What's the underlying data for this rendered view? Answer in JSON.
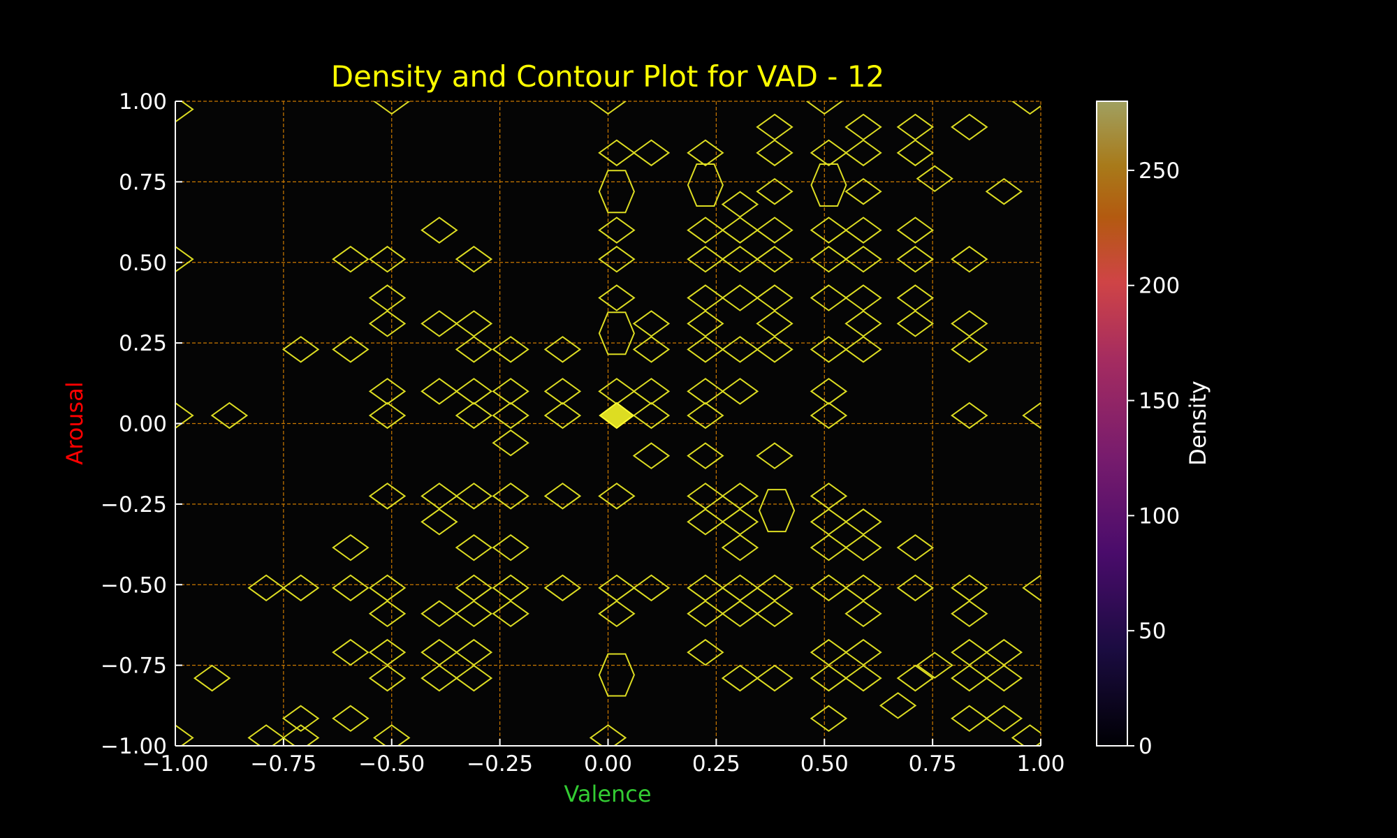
{
  "chart_data": {
    "type": "heatmap",
    "title": "Density and Contour Plot for VAD - 12",
    "xlabel": "Valence",
    "ylabel": "Arousal",
    "xlim": [
      -1.0,
      1.0
    ],
    "ylim": [
      -1.0,
      1.0
    ],
    "x_ticks": [
      "−1.00",
      "−0.75",
      "−0.50",
      "−0.25",
      "0.00",
      "0.25",
      "0.50",
      "0.75",
      "1.00"
    ],
    "y_ticks": [
      "−1.00",
      "−0.75",
      "−0.50",
      "−0.25",
      "0.00",
      "0.25",
      "0.50",
      "0.75",
      "1.00"
    ],
    "grid": true,
    "colorbar": {
      "label": "Density",
      "min": 0,
      "max": 280,
      "ticks": [
        "0",
        "50",
        "100",
        "150",
        "200",
        "250"
      ],
      "colormap": "inferno"
    },
    "colors": {
      "background": "#000000",
      "title": "#ffff00",
      "xlabel": "#33cc33",
      "ylabel": "#ff0000",
      "grid": "#cc7a00",
      "contour": "#dddd22",
      "tick_label": "#ffffff"
    },
    "contours": [
      [
        -1.0,
        0.975
      ],
      [
        -0.5,
        1.0
      ],
      [
        0.0,
        1.0
      ],
      [
        0.5,
        1.0
      ],
      [
        0.975,
        1.0
      ],
      [
        0.385,
        0.92
      ],
      [
        0.59,
        0.92
      ],
      [
        0.71,
        0.92
      ],
      [
        0.835,
        0.92
      ],
      [
        0.02,
        0.84
      ],
      [
        0.1,
        0.84
      ],
      [
        0.225,
        0.84
      ],
      [
        0.385,
        0.84
      ],
      [
        0.51,
        0.84
      ],
      [
        0.59,
        0.84
      ],
      [
        0.71,
        0.84
      ],
      [
        0.755,
        0.76
      ],
      [
        0.305,
        0.68
      ],
      [
        0.385,
        0.72
      ],
      [
        0.59,
        0.72
      ],
      [
        0.915,
        0.72
      ],
      [
        -0.39,
        0.6
      ],
      [
        0.02,
        0.6
      ],
      [
        0.225,
        0.6
      ],
      [
        0.305,
        0.6
      ],
      [
        0.385,
        0.6
      ],
      [
        0.51,
        0.6
      ],
      [
        0.59,
        0.6
      ],
      [
        0.71,
        0.6
      ],
      [
        -1.0,
        0.51
      ],
      [
        -0.595,
        0.51
      ],
      [
        -0.51,
        0.51
      ],
      [
        -0.31,
        0.51
      ],
      [
        0.02,
        0.51
      ],
      [
        0.225,
        0.51
      ],
      [
        0.305,
        0.51
      ],
      [
        0.385,
        0.51
      ],
      [
        0.51,
        0.51
      ],
      [
        0.59,
        0.51
      ],
      [
        0.71,
        0.51
      ],
      [
        0.835,
        0.51
      ],
      [
        -0.51,
        0.39
      ],
      [
        0.02,
        0.39
      ],
      [
        0.225,
        0.39
      ],
      [
        0.305,
        0.39
      ],
      [
        0.385,
        0.39
      ],
      [
        0.51,
        0.39
      ],
      [
        0.59,
        0.39
      ],
      [
        0.71,
        0.39
      ],
      [
        -0.51,
        0.31
      ],
      [
        -0.39,
        0.31
      ],
      [
        -0.31,
        0.31
      ],
      [
        0.1,
        0.31
      ],
      [
        0.225,
        0.31
      ],
      [
        0.385,
        0.31
      ],
      [
        0.59,
        0.31
      ],
      [
        0.71,
        0.31
      ],
      [
        0.835,
        0.31
      ],
      [
        -0.71,
        0.23
      ],
      [
        -0.595,
        0.23
      ],
      [
        -0.31,
        0.23
      ],
      [
        -0.225,
        0.23
      ],
      [
        -0.105,
        0.23
      ],
      [
        0.1,
        0.23
      ],
      [
        0.225,
        0.23
      ],
      [
        0.305,
        0.23
      ],
      [
        0.385,
        0.23
      ],
      [
        0.51,
        0.23
      ],
      [
        0.59,
        0.23
      ],
      [
        0.835,
        0.23
      ],
      [
        -0.51,
        0.1
      ],
      [
        -0.39,
        0.1
      ],
      [
        -0.31,
        0.1
      ],
      [
        -0.225,
        0.1
      ],
      [
        -0.105,
        0.1
      ],
      [
        0.02,
        0.1
      ],
      [
        0.1,
        0.1
      ],
      [
        0.225,
        0.1
      ],
      [
        0.305,
        0.1
      ],
      [
        0.51,
        0.1
      ],
      [
        -1.0,
        0.025
      ],
      [
        -0.875,
        0.025
      ],
      [
        -0.51,
        0.025
      ],
      [
        -0.31,
        0.025
      ],
      [
        -0.225,
        0.025
      ],
      [
        -0.105,
        0.025
      ],
      [
        0.1,
        0.025
      ],
      [
        0.225,
        0.025
      ],
      [
        0.51,
        0.025
      ],
      [
        0.835,
        0.025
      ],
      [
        1.0,
        0.025
      ],
      [
        -0.225,
        -0.06
      ],
      [
        0.1,
        -0.1
      ],
      [
        0.225,
        -0.1
      ],
      [
        0.385,
        -0.1
      ],
      [
        -0.51,
        -0.225
      ],
      [
        -0.39,
        -0.225
      ],
      [
        -0.31,
        -0.225
      ],
      [
        -0.225,
        -0.225
      ],
      [
        -0.105,
        -0.225
      ],
      [
        0.02,
        -0.225
      ],
      [
        0.225,
        -0.225
      ],
      [
        0.305,
        -0.225
      ],
      [
        0.51,
        -0.225
      ],
      [
        -0.39,
        -0.305
      ],
      [
        0.225,
        -0.305
      ],
      [
        0.305,
        -0.305
      ],
      [
        0.51,
        -0.305
      ],
      [
        0.59,
        -0.305
      ],
      [
        -0.595,
        -0.385
      ],
      [
        -0.31,
        -0.385
      ],
      [
        -0.225,
        -0.385
      ],
      [
        0.305,
        -0.385
      ],
      [
        0.51,
        -0.385
      ],
      [
        0.59,
        -0.385
      ],
      [
        0.71,
        -0.385
      ],
      [
        -0.79,
        -0.51
      ],
      [
        -0.71,
        -0.51
      ],
      [
        -0.595,
        -0.51
      ],
      [
        -0.51,
        -0.51
      ],
      [
        -0.31,
        -0.51
      ],
      [
        -0.225,
        -0.51
      ],
      [
        -0.105,
        -0.51
      ],
      [
        0.02,
        -0.51
      ],
      [
        0.1,
        -0.51
      ],
      [
        0.225,
        -0.51
      ],
      [
        0.305,
        -0.51
      ],
      [
        0.385,
        -0.51
      ],
      [
        0.51,
        -0.51
      ],
      [
        0.59,
        -0.51
      ],
      [
        0.71,
        -0.51
      ],
      [
        0.835,
        -0.51
      ],
      [
        1.0,
        -0.51
      ],
      [
        -0.51,
        -0.59
      ],
      [
        -0.39,
        -0.59
      ],
      [
        -0.31,
        -0.59
      ],
      [
        -0.225,
        -0.59
      ],
      [
        0.02,
        -0.59
      ],
      [
        0.225,
        -0.59
      ],
      [
        0.305,
        -0.59
      ],
      [
        0.385,
        -0.59
      ],
      [
        0.59,
        -0.59
      ],
      [
        0.835,
        -0.59
      ],
      [
        -0.595,
        -0.71
      ],
      [
        -0.51,
        -0.71
      ],
      [
        -0.39,
        -0.71
      ],
      [
        -0.31,
        -0.71
      ],
      [
        0.225,
        -0.71
      ],
      [
        0.51,
        -0.71
      ],
      [
        0.59,
        -0.71
      ],
      [
        0.835,
        -0.71
      ],
      [
        0.915,
        -0.71
      ],
      [
        -0.915,
        -0.79
      ],
      [
        -0.51,
        -0.79
      ],
      [
        -0.39,
        -0.79
      ],
      [
        -0.31,
        -0.79
      ],
      [
        0.305,
        -0.79
      ],
      [
        0.385,
        -0.79
      ],
      [
        0.51,
        -0.79
      ],
      [
        0.59,
        -0.79
      ],
      [
        0.71,
        -0.79
      ],
      [
        0.755,
        -0.75
      ],
      [
        0.835,
        -0.79
      ],
      [
        0.915,
        -0.79
      ],
      [
        0.67,
        -0.875
      ],
      [
        -0.71,
        -0.915
      ],
      [
        -0.595,
        -0.915
      ],
      [
        0.51,
        -0.915
      ],
      [
        0.835,
        -0.915
      ],
      [
        0.915,
        -0.915
      ],
      [
        -1.0,
        -0.975
      ],
      [
        -0.79,
        -0.975
      ],
      [
        -0.71,
        -0.975
      ],
      [
        -0.5,
        -0.975
      ],
      [
        0.0,
        -0.975
      ],
      [
        0.975,
        -0.975
      ]
    ],
    "hexagons": [
      [
        0.02,
        0.72
      ],
      [
        0.225,
        0.74
      ],
      [
        0.51,
        0.74
      ],
      [
        0.02,
        0.28
      ],
      [
        0.02,
        -0.78
      ],
      [
        0.39,
        -0.27
      ]
    ],
    "peak": [
      0.02,
      0.025
    ]
  }
}
